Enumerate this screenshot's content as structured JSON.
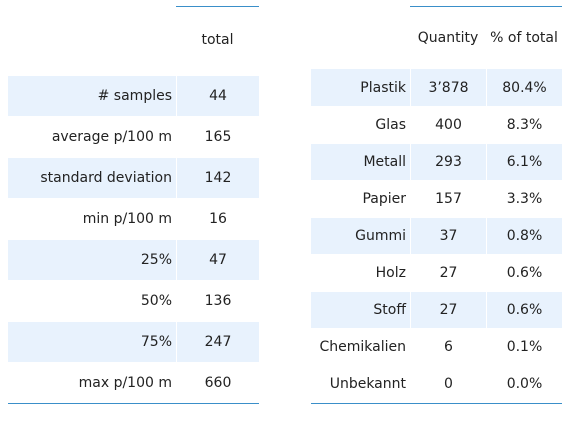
{
  "left_table": {
    "columns": [
      "",
      "total"
    ],
    "rows": [
      {
        "label": "# samples",
        "value": "44"
      },
      {
        "label": "average p/100 m",
        "value": "165"
      },
      {
        "label": "standard deviation",
        "value": "142"
      },
      {
        "label": "min p/100 m",
        "value": "16"
      },
      {
        "label": "25%",
        "value": "47"
      },
      {
        "label": "50%",
        "value": "136"
      },
      {
        "label": "75%",
        "value": "247"
      },
      {
        "label": "max p/100 m",
        "value": "660"
      }
    ]
  },
  "right_table": {
    "columns": [
      "",
      "Quantity",
      "% of total"
    ],
    "rows": [
      {
        "label": "Plastik",
        "quantity": "3’878",
        "percent": "80.4%"
      },
      {
        "label": "Glas",
        "quantity": "400",
        "percent": "8.3%"
      },
      {
        "label": "Metall",
        "quantity": "293",
        "percent": "6.1%"
      },
      {
        "label": "Papier",
        "quantity": "157",
        "percent": "3.3%"
      },
      {
        "label": "Gummi",
        "quantity": "37",
        "percent": "0.8%"
      },
      {
        "label": "Holz",
        "quantity": "27",
        "percent": "0.6%"
      },
      {
        "label": "Stoff",
        "quantity": "27",
        "percent": "0.6%"
      },
      {
        "label": "Chemikalien",
        "quantity": "6",
        "percent": "0.1%"
      },
      {
        "label": "Unbekannt",
        "quantity": "0",
        "percent": "0.0%"
      }
    ]
  }
}
